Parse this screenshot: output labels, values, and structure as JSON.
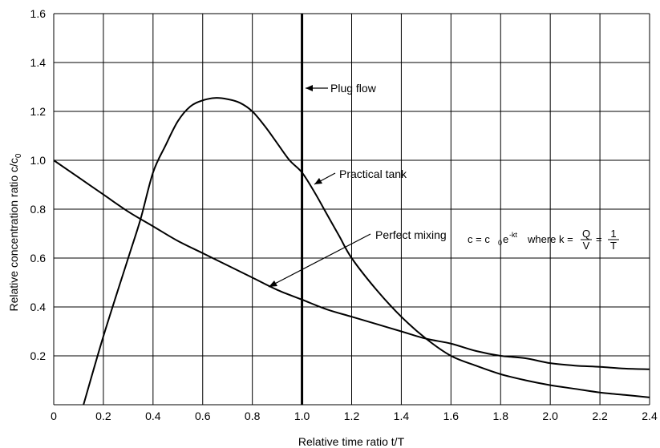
{
  "chart_data": {
    "type": "line",
    "xlabel": "Relative time ratio t/T",
    "ylabel": {
      "main": "Relative concentration ratio   c/c",
      "subscript": "0"
    },
    "xlim": [
      0,
      2.4
    ],
    "ylim": [
      0,
      1.6
    ],
    "x_ticks": [
      "0",
      "0.2",
      "0.4",
      "0.6",
      "0.8",
      "1.0",
      "1.2",
      "1.4",
      "1.6",
      "1.8",
      "2.0",
      "2.2",
      "2.4"
    ],
    "y_ticks": [
      "0.2",
      "0.4",
      "0.6",
      "0.8",
      "1.0",
      "1.2",
      "1.4",
      "1.6"
    ],
    "grid": true,
    "series": [
      {
        "name": "Perfect mixing",
        "x": [
          0,
          0.1,
          0.2,
          0.3,
          0.4,
          0.5,
          0.6,
          0.7,
          0.8,
          0.9,
          1.0,
          1.1,
          1.2,
          1.3,
          1.4,
          1.5,
          1.6,
          1.7,
          1.8,
          1.9,
          2.0,
          2.1,
          2.2,
          2.3,
          2.4
        ],
        "y": [
          1.0,
          0.93,
          0.86,
          0.79,
          0.73,
          0.67,
          0.62,
          0.57,
          0.52,
          0.47,
          0.43,
          0.39,
          0.36,
          0.33,
          0.3,
          0.27,
          0.25,
          0.22,
          0.2,
          0.19,
          0.17,
          0.16,
          0.155,
          0.148,
          0.145
        ]
      },
      {
        "name": "Practical tank",
        "x": [
          0.12,
          0.2,
          0.3,
          0.35,
          0.4,
          0.45,
          0.5,
          0.55,
          0.6,
          0.65,
          0.7,
          0.75,
          0.8,
          0.85,
          0.9,
          0.95,
          1.0,
          1.05,
          1.1,
          1.15,
          1.2,
          1.3,
          1.4,
          1.5,
          1.6,
          1.7,
          1.8,
          1.9,
          2.0,
          2.1,
          2.2,
          2.3,
          2.4
        ],
        "y": [
          0.0,
          0.28,
          0.6,
          0.76,
          0.95,
          1.06,
          1.16,
          1.22,
          1.245,
          1.255,
          1.25,
          1.235,
          1.2,
          1.14,
          1.07,
          1.0,
          0.95,
          0.87,
          0.78,
          0.69,
          0.6,
          0.47,
          0.36,
          0.27,
          0.2,
          0.16,
          0.125,
          0.1,
          0.08,
          0.065,
          0.05,
          0.04,
          0.03
        ]
      }
    ],
    "vertical_line": {
      "name": "Plug flow",
      "x": 1.0
    },
    "annotations": {
      "plug_flow": "Plug flow",
      "practical_tank": "Practical tank",
      "perfect_mixing": "Perfect mixing"
    },
    "formula": {
      "lhs": "c = c",
      "sub0": "0",
      "e": "e",
      "exp": "-kt",
      "where": "where  k =",
      "frac1_num": "Q",
      "frac1_den": "V",
      "eq": "=",
      "frac2_num": "1",
      "frac2_den": "T"
    }
  }
}
